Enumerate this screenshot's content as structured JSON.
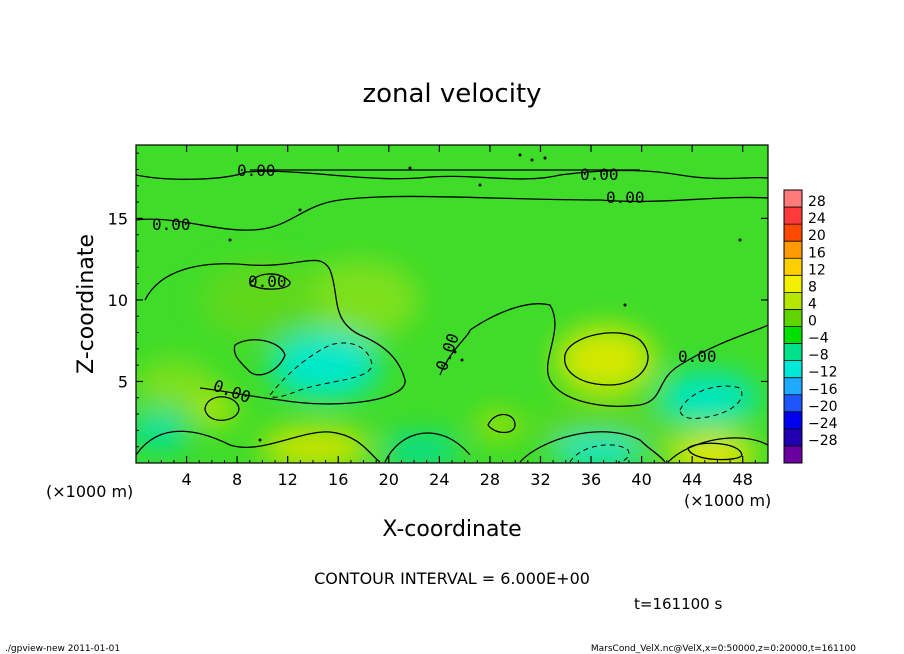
{
  "chart_data": {
    "type": "heatmap",
    "title": "zonal velocity",
    "xlabel": "X-coordinate",
    "ylabel": "Z-coordinate",
    "x_unit": "(×1000 m)",
    "y_unit": "(×1000 m)",
    "xlim": [
      0,
      50
    ],
    "ylim": [
      0,
      19.5
    ],
    "x_ticks": [
      4,
      8,
      12,
      16,
      20,
      24,
      28,
      32,
      36,
      40,
      44,
      48
    ],
    "y_ticks": [
      5,
      10,
      15
    ],
    "colorbar": {
      "levels": [
        28,
        24,
        20,
        16,
        12,
        8,
        4,
        0,
        -4,
        -8,
        -12,
        -16,
        -20,
        -24,
        -28
      ],
      "colors": [
        "#ff7a7a",
        "#ff3a3a",
        "#ff4a00",
        "#ff9a00",
        "#ffd000",
        "#f2f000",
        "#b6e600",
        "#5fd400",
        "#00e000",
        "#00e08a",
        "#00e8d8",
        "#1eaaff",
        "#1f55ff",
        "#0000ee",
        "#2000b0",
        "#6a00a0"
      ]
    },
    "features": [
      {
        "kind": "positive-max",
        "x": 37,
        "z": 6.8,
        "value": 6
      },
      {
        "kind": "positive-max",
        "x": 45,
        "z": 0.8,
        "value": 6
      },
      {
        "kind": "positive-max",
        "x": 16,
        "z": 1.2,
        "value": 6
      },
      {
        "kind": "negative-min",
        "x": 15,
        "z": 6,
        "value": -6
      },
      {
        "kind": "negative-min",
        "x": 46,
        "z": 3.5,
        "value": -6
      },
      {
        "kind": "negative-min",
        "x": 36,
        "z": 1.3,
        "value": -6
      }
    ],
    "contour_labels": [
      "0.00",
      "0.00",
      "0.00",
      "0.00",
      "0.00",
      "0.00",
      "0.00",
      "0.00"
    ],
    "contour_interval": "CONTOUR INTERVAL = 6.000E+00",
    "time": "t=161100 s"
  },
  "footer": {
    "left": "./gpview-new  2011-01-01",
    "right": "MarsCond_VelX.nc@VelX,x=0:50000,z=0:20000,t=161100"
  }
}
